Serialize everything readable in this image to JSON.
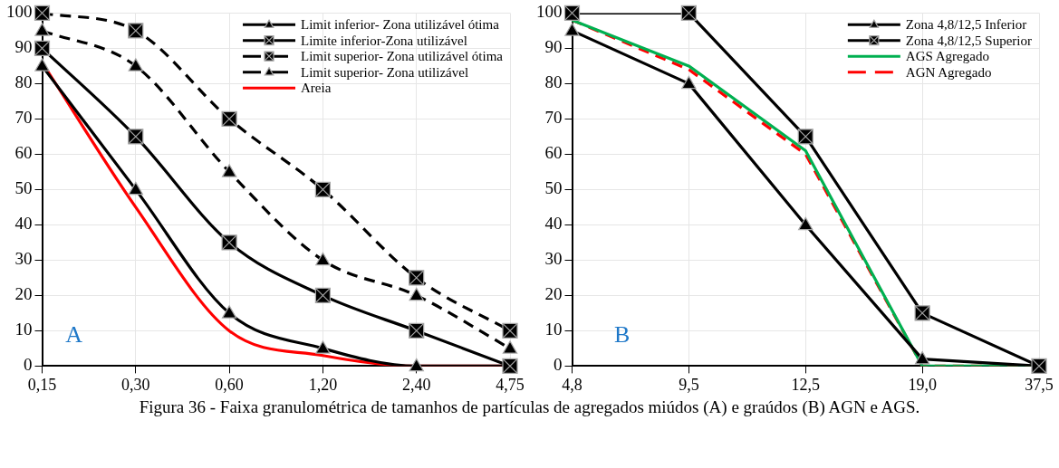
{
  "chart_data": [
    {
      "type": "line",
      "categories": [
        "0,15",
        "0,30",
        "0,60",
        "1,20",
        "2,40",
        "4,75"
      ],
      "ylim": [
        0,
        100
      ],
      "yticks": [
        0,
        10,
        20,
        30,
        40,
        50,
        60,
        70,
        80,
        90,
        100
      ],
      "grid": true,
      "legend": "top right",
      "annotations": [
        "A",
        "Figura 36 - Faixa granulométrica de tamanhos de partículas de agregados miúdos (A) e graúdos (B) AGN e AGS."
      ],
      "series": [
        {
          "name": "Limit inferior- Zona utilizável ótima",
          "color": "#000000",
          "marker": "triangle",
          "line_style": "solid",
          "values": [
            85,
            50,
            15,
            5,
            0,
            0
          ]
        },
        {
          "name": "Limite inferior-Zona utilizável",
          "color": "#000000",
          "marker": "square",
          "line_style": "solid",
          "values": [
            90,
            65,
            35,
            20,
            10,
            0
          ]
        },
        {
          "name": "Limit superior- Zona utilizável ótima",
          "color": "#000000",
          "marker": "square",
          "line_style": "dashed",
          "values": [
            100,
            95,
            70,
            50,
            25,
            10
          ]
        },
        {
          "name": "Limit superior- Zona utilizável",
          "color": "#000000",
          "marker": "triangle",
          "line_style": "dashed",
          "values": [
            95,
            85,
            55,
            30,
            20,
            5
          ]
        },
        {
          "name": "Areia",
          "color": "#ff0000",
          "marker": "none",
          "line_style": "solid",
          "values": [
            86,
            45,
            10,
            3,
            0,
            0
          ]
        }
      ]
    },
    {
      "type": "line",
      "categories": [
        "4,8",
        "9,5",
        "12,5",
        "19,0",
        "37,5"
      ],
      "ylim": [
        0,
        100
      ],
      "yticks": [
        0,
        10,
        20,
        30,
        40,
        50,
        60,
        70,
        80,
        90,
        100
      ],
      "grid": true,
      "legend": "top right",
      "annotations": [
        "B"
      ],
      "series": [
        {
          "name": "Zona 4,8/12,5 Inferior",
          "color": "#000000",
          "marker": "triangle",
          "line_style": "solid",
          "values": [
            95,
            80,
            40,
            2,
            0
          ]
        },
        {
          "name": "Zona 4,8/12,5 Superior",
          "color": "#000000",
          "marker": "square",
          "line_style": "solid",
          "values": [
            100,
            100,
            65,
            15,
            0
          ]
        },
        {
          "name": "AGS Agregado",
          "color": "#00b050",
          "marker": "none",
          "line_style": "solid",
          "values": [
            98,
            85,
            61,
            0,
            0
          ]
        },
        {
          "name": "AGN Agregado",
          "color": "#ff0000",
          "marker": "none",
          "line_style": "dashed",
          "values": [
            98,
            84,
            60,
            0,
            0
          ]
        }
      ]
    }
  ]
}
